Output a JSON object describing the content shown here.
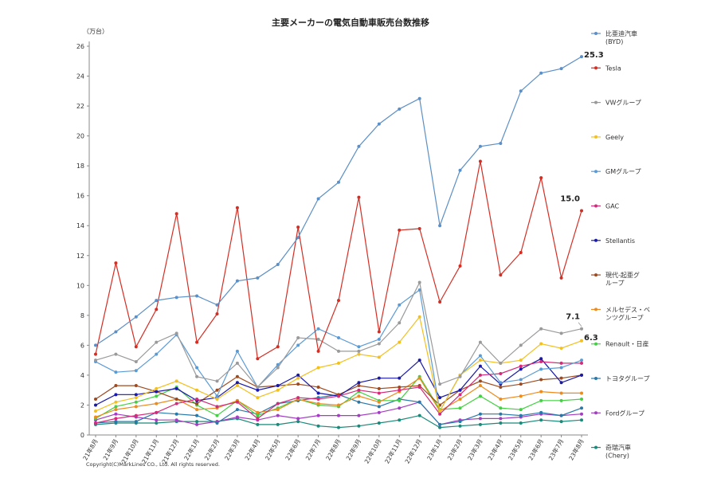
{
  "chart_data": {
    "type": "line",
    "title": "主要メーカーの電気自動車販売台数推移",
    "ylabel": "（万台）",
    "xlabel": "",
    "ylim": [
      0,
      26
    ],
    "yticks": [
      0,
      2,
      4,
      6,
      8,
      10,
      12,
      14,
      16,
      18,
      20,
      22,
      24,
      26
    ],
    "grid": false,
    "legend_position": "right",
    "copyright": "Copyright(C)MarkLines CO., Ltd. All rights reserved.",
    "categories": [
      "21年8月",
      "21年9月",
      "21年10月",
      "21年11月",
      "21年12月",
      "22年1月",
      "22年2月",
      "22年3月",
      "22年4月",
      "22年5月",
      "22年6月",
      "22年7月",
      "22年8月",
      "22年9月",
      "22年10月",
      "22年11月",
      "22年12月",
      "23年1月",
      "23年2月",
      "23年3月",
      "23年4月",
      "23年5月",
      "23年6月",
      "23年7月",
      "23年8月"
    ],
    "series": [
      {
        "name": "比亜迪汽車\n(BYD)",
        "color": "#5b8fc7",
        "values": [
          6.0,
          6.9,
          7.9,
          9.0,
          9.2,
          9.3,
          8.7,
          10.3,
          10.5,
          11.4,
          13.2,
          15.8,
          16.9,
          19.3,
          20.8,
          21.8,
          22.5,
          14.0,
          17.7,
          19.3,
          19.5,
          23.0,
          24.2,
          24.5,
          25.3
        ]
      },
      {
        "name": "Tesla",
        "color": "#d42e24",
        "values": [
          5.4,
          11.5,
          5.9,
          8.4,
          14.8,
          6.2,
          8.1,
          15.2,
          5.1,
          5.9,
          13.9,
          5.6,
          9.0,
          15.9,
          6.9,
          13.7,
          13.8,
          8.9,
          11.3,
          18.3,
          10.7,
          12.2,
          17.2,
          10.5,
          15.0
        ]
      },
      {
        "name": "VWグループ",
        "color": "#9a9a9a",
        "values": [
          5.0,
          5.4,
          4.9,
          6.2,
          6.8,
          3.9,
          3.6,
          4.8,
          3.2,
          4.5,
          6.5,
          6.4,
          5.6,
          5.6,
          6.1,
          7.5,
          10.2,
          3.4,
          3.9,
          6.2,
          4.8,
          6.0,
          7.1,
          6.8,
          7.1
        ]
      },
      {
        "name": "Geely",
        "color": "#f2c020",
        "values": [
          1.6,
          2.2,
          2.5,
          3.1,
          3.6,
          3.0,
          2.4,
          3.3,
          2.5,
          3.0,
          3.8,
          4.5,
          4.8,
          5.4,
          5.2,
          6.2,
          7.9,
          1.6,
          4.0,
          5.0,
          4.8,
          5.0,
          6.1,
          5.8,
          6.3
        ]
      },
      {
        "name": "GMグループ",
        "color": "#5b9bd5",
        "values": [
          4.9,
          4.2,
          4.3,
          5.4,
          6.7,
          4.5,
          2.6,
          5.6,
          3.2,
          4.7,
          6.0,
          7.1,
          6.5,
          5.9,
          6.4,
          8.7,
          9.7,
          1.6,
          4.0,
          5.3,
          3.5,
          3.7,
          4.4,
          4.5,
          5.0
        ]
      },
      {
        "name": "GAC",
        "color": "#d42a7a",
        "values": [
          0.8,
          1.1,
          1.3,
          1.5,
          2.1,
          2.4,
          1.9,
          2.2,
          1.1,
          2.1,
          2.5,
          2.4,
          2.6,
          3.0,
          2.8,
          3.0,
          3.2,
          1.4,
          2.7,
          4.0,
          4.1,
          4.6,
          4.9,
          4.8,
          4.8
        ]
      },
      {
        "name": "Stellantis",
        "color": "#1a1aa8",
        "values": [
          2.0,
          2.7,
          2.7,
          2.9,
          3.1,
          2.3,
          2.5,
          3.5,
          3.0,
          3.3,
          4.0,
          2.8,
          2.6,
          3.5,
          3.8,
          3.8,
          5.0,
          2.5,
          3.0,
          4.6,
          3.4,
          4.4,
          5.1,
          3.5,
          4.0
        ]
      },
      {
        "name": "現代-起亜グ\nループ",
        "color": "#9e4a1e",
        "values": [
          2.4,
          3.3,
          3.3,
          2.9,
          2.4,
          2.1,
          3.0,
          3.9,
          3.2,
          3.3,
          3.4,
          3.2,
          2.7,
          3.3,
          3.1,
          3.2,
          3.3,
          2.0,
          3.0,
          3.6,
          3.2,
          3.4,
          3.7,
          3.8,
          4.0
        ]
      },
      {
        "name": "メルセデス・ベ\nンツグループ",
        "color": "#ed8b1c",
        "values": [
          1.2,
          1.7,
          1.9,
          2.1,
          2.4,
          1.7,
          1.8,
          2.3,
          1.5,
          1.7,
          2.4,
          2.1,
          2.0,
          2.6,
          2.2,
          2.9,
          3.8,
          1.6,
          2.4,
          3.3,
          2.4,
          2.6,
          2.9,
          2.8,
          2.8
        ]
      },
      {
        "name": "Renault・日産",
        "color": "#43d043",
        "values": [
          1.1,
          1.9,
          2.2,
          2.6,
          3.2,
          2.0,
          1.3,
          2.3,
          1.3,
          1.8,
          2.4,
          2.0,
          1.9,
          2.9,
          2.3,
          2.3,
          3.9,
          1.7,
          1.8,
          2.6,
          1.8,
          1.7,
          2.3,
          2.3,
          2.4
        ]
      },
      {
        "name": "トヨタグループ",
        "color": "#2878a8",
        "values": [
          0.8,
          0.9,
          0.9,
          1.5,
          1.4,
          1.3,
          0.8,
          1.7,
          1.4,
          2.1,
          2.3,
          2.5,
          2.7,
          2.2,
          1.9,
          2.4,
          2.2,
          0.7,
          0.9,
          1.4,
          1.4,
          1.3,
          1.5,
          1.3,
          1.8
        ]
      },
      {
        "name": "Fordグループ",
        "color": "#a23fc0",
        "values": [
          1.0,
          1.4,
          1.2,
          1.0,
          1.0,
          0.7,
          0.9,
          1.2,
          1.0,
          1.3,
          1.1,
          1.3,
          1.3,
          1.3,
          1.5,
          1.8,
          2.2,
          0.7,
          1.0,
          1.1,
          1.1,
          1.2,
          1.4,
          1.3,
          1.4
        ]
      },
      {
        "name": "奇瑞汽車\n(Chery)",
        "color": "#1a8a7a",
        "values": [
          0.7,
          0.8,
          0.8,
          0.8,
          0.9,
          0.9,
          0.9,
          1.1,
          0.7,
          0.7,
          0.9,
          0.6,
          0.5,
          0.6,
          0.8,
          1.0,
          1.3,
          0.5,
          0.6,
          0.7,
          0.8,
          0.8,
          1.0,
          0.9,
          1.0
        ]
      }
    ],
    "annotations": [
      {
        "series": 0,
        "index": 24,
        "text": "25.3"
      },
      {
        "series": 1,
        "index": 24,
        "text": "15.0"
      },
      {
        "series": 2,
        "index": 24,
        "text": "7.1"
      },
      {
        "series": 3,
        "index": 24,
        "text": "6.3"
      }
    ]
  }
}
